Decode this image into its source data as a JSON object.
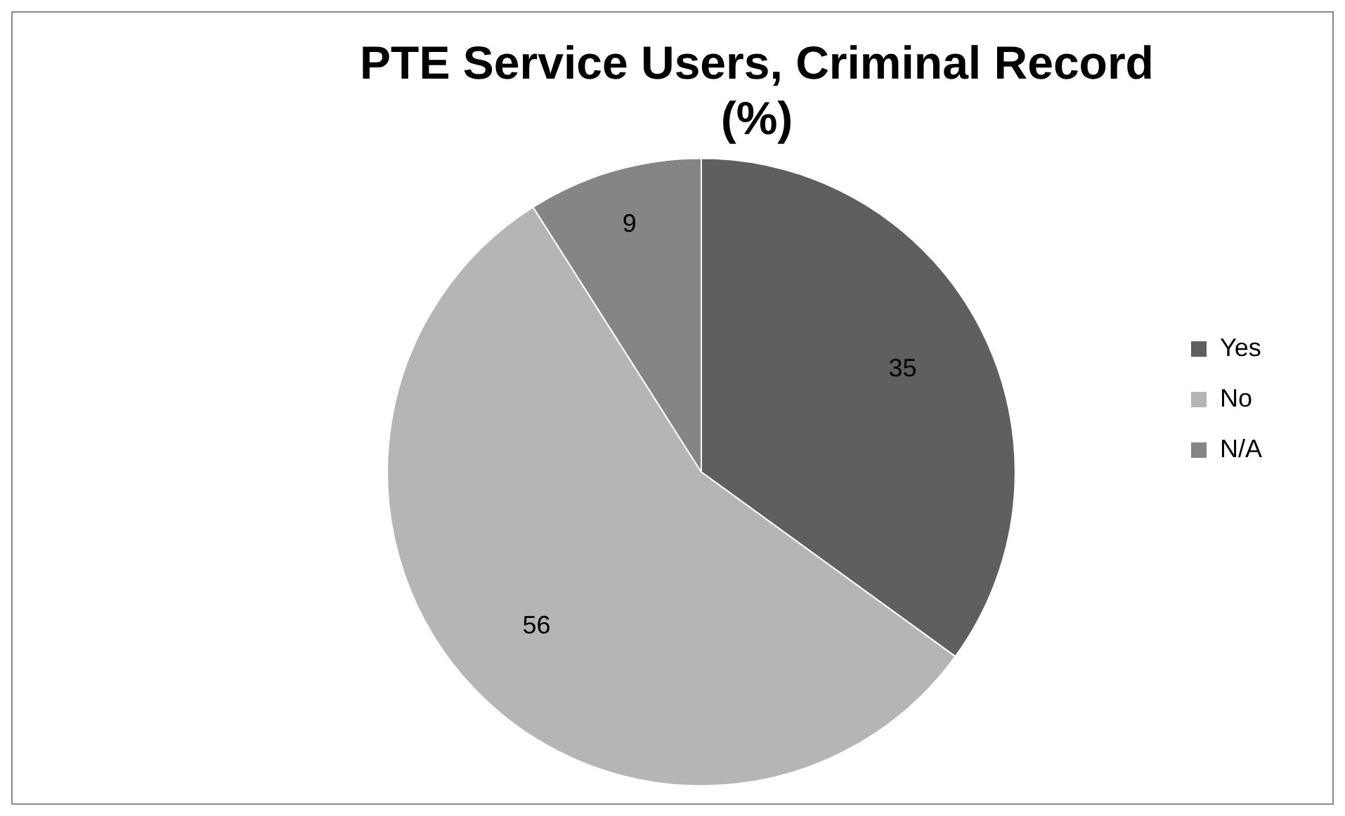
{
  "chart_data": {
    "type": "pie",
    "title": "PTE Service Users, Criminal Record (%)",
    "categories": [
      "Yes",
      "No",
      "N/A"
    ],
    "values": [
      35,
      56,
      9
    ],
    "colors": [
      "#5f5f5f",
      "#b5b5b5",
      "#858585"
    ],
    "data_labels": true,
    "legend": "right"
  }
}
